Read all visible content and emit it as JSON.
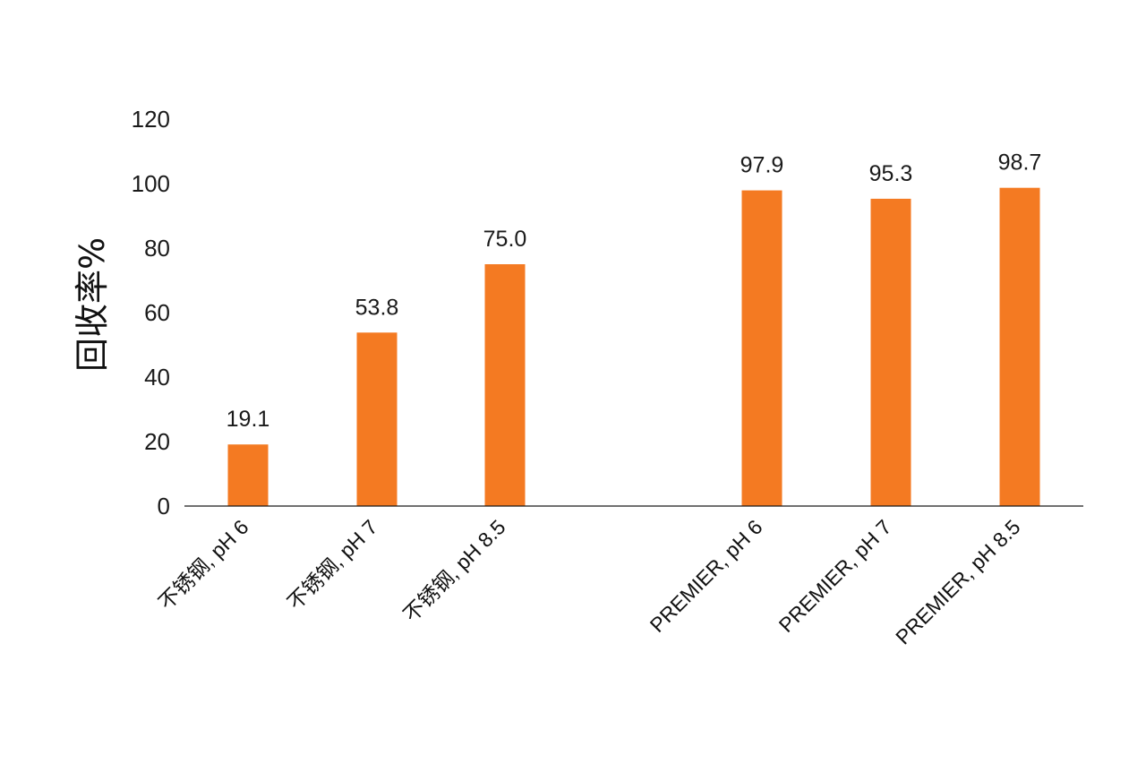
{
  "chart_data": {
    "type": "bar",
    "categories": [
      "不锈钢, pH 6",
      "不锈钢, pH 7",
      "不锈钢, pH 8.5",
      "PREMIER, pH 6",
      "PREMIER, pH 7",
      "PREMIER, pH 8.5"
    ],
    "values": [
      19.1,
      53.8,
      75.0,
      97.9,
      95.3,
      98.7
    ],
    "data_labels": [
      "19.1",
      "53.8",
      "75.0",
      "97.9",
      "95.3",
      "98.7"
    ],
    "ylabel": "回收率%",
    "xlabel": "",
    "ylim": [
      0,
      120
    ],
    "yticks": [
      0,
      20,
      40,
      60,
      80,
      100,
      120
    ],
    "grid": false,
    "legend": "none",
    "bar_color": "#F47A22",
    "axis_color": "#1a1a1a"
  }
}
